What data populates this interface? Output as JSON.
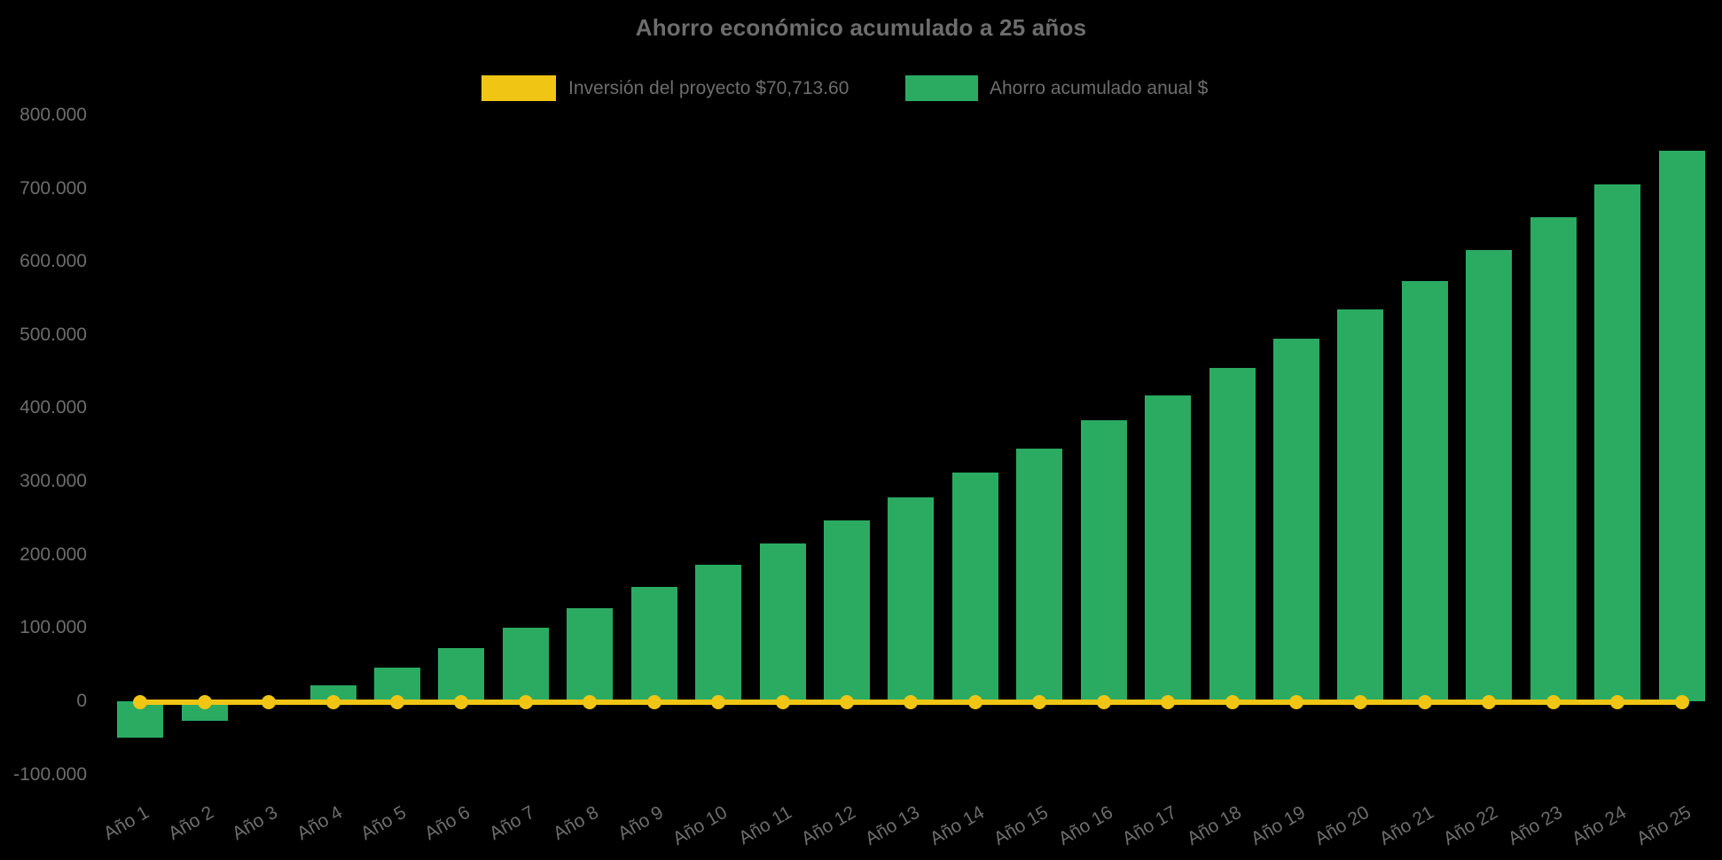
{
  "chart_data": {
    "type": "bar",
    "title": "Ahorro económico acumulado a 25 años",
    "background_color": "#000000",
    "text_color": "#6d6d6d",
    "grid": false,
    "legend_position": "top",
    "ylim": [
      -100000,
      800000
    ],
    "categories": [
      "Año 1",
      "Año 2",
      "Año 3",
      "Año 4",
      "Año 5",
      "Año 6",
      "Año 7",
      "Año 8",
      "Año 9",
      "Año 10",
      "Año 11",
      "Año 12",
      "Año 13",
      "Año 14",
      "Año 15",
      "Año 16",
      "Año 17",
      "Año 18",
      "Año 19",
      "Año 20",
      "Año 21",
      "Año 22",
      "Año 23",
      "Año 24",
      "Año 25"
    ],
    "series": [
      {
        "name": "Inversión del proyecto $70,713.60",
        "type": "line",
        "color": "#F0C514",
        "marker": "circle",
        "investment_value_label": "$70,713.60",
        "values": [
          0,
          0,
          0,
          0,
          0,
          0,
          0,
          0,
          0,
          0,
          0,
          0,
          0,
          0,
          0,
          0,
          0,
          0,
          0,
          0,
          0,
          0,
          0,
          0,
          0
        ]
      },
      {
        "name": "Ahorro acumulado anual $",
        "type": "bar",
        "color": "#2BAB62",
        "values": [
          -50000,
          -27000,
          -1500,
          22000,
          46000,
          72500,
          100000,
          127000,
          156000,
          186000,
          215000,
          247000,
          278000,
          312000,
          345000,
          383000,
          418000,
          455000,
          495000,
          535000,
          574000,
          616000,
          661000,
          706000,
          751000
        ]
      }
    ],
    "y_axis": {
      "ticks": [
        {
          "value": 800000,
          "label": "800.000"
        },
        {
          "value": 700000,
          "label": "700.000"
        },
        {
          "value": 600000,
          "label": "600.000"
        },
        {
          "value": 500000,
          "label": "500.000"
        },
        {
          "value": 400000,
          "label": "400.000"
        },
        {
          "value": 300000,
          "label": "300.000"
        },
        {
          "value": 200000,
          "label": "200.000"
        },
        {
          "value": 100000,
          "label": "100.000"
        },
        {
          "value": 0,
          "label": "0"
        },
        {
          "value": -100000,
          "label": "-100.000"
        }
      ]
    }
  }
}
